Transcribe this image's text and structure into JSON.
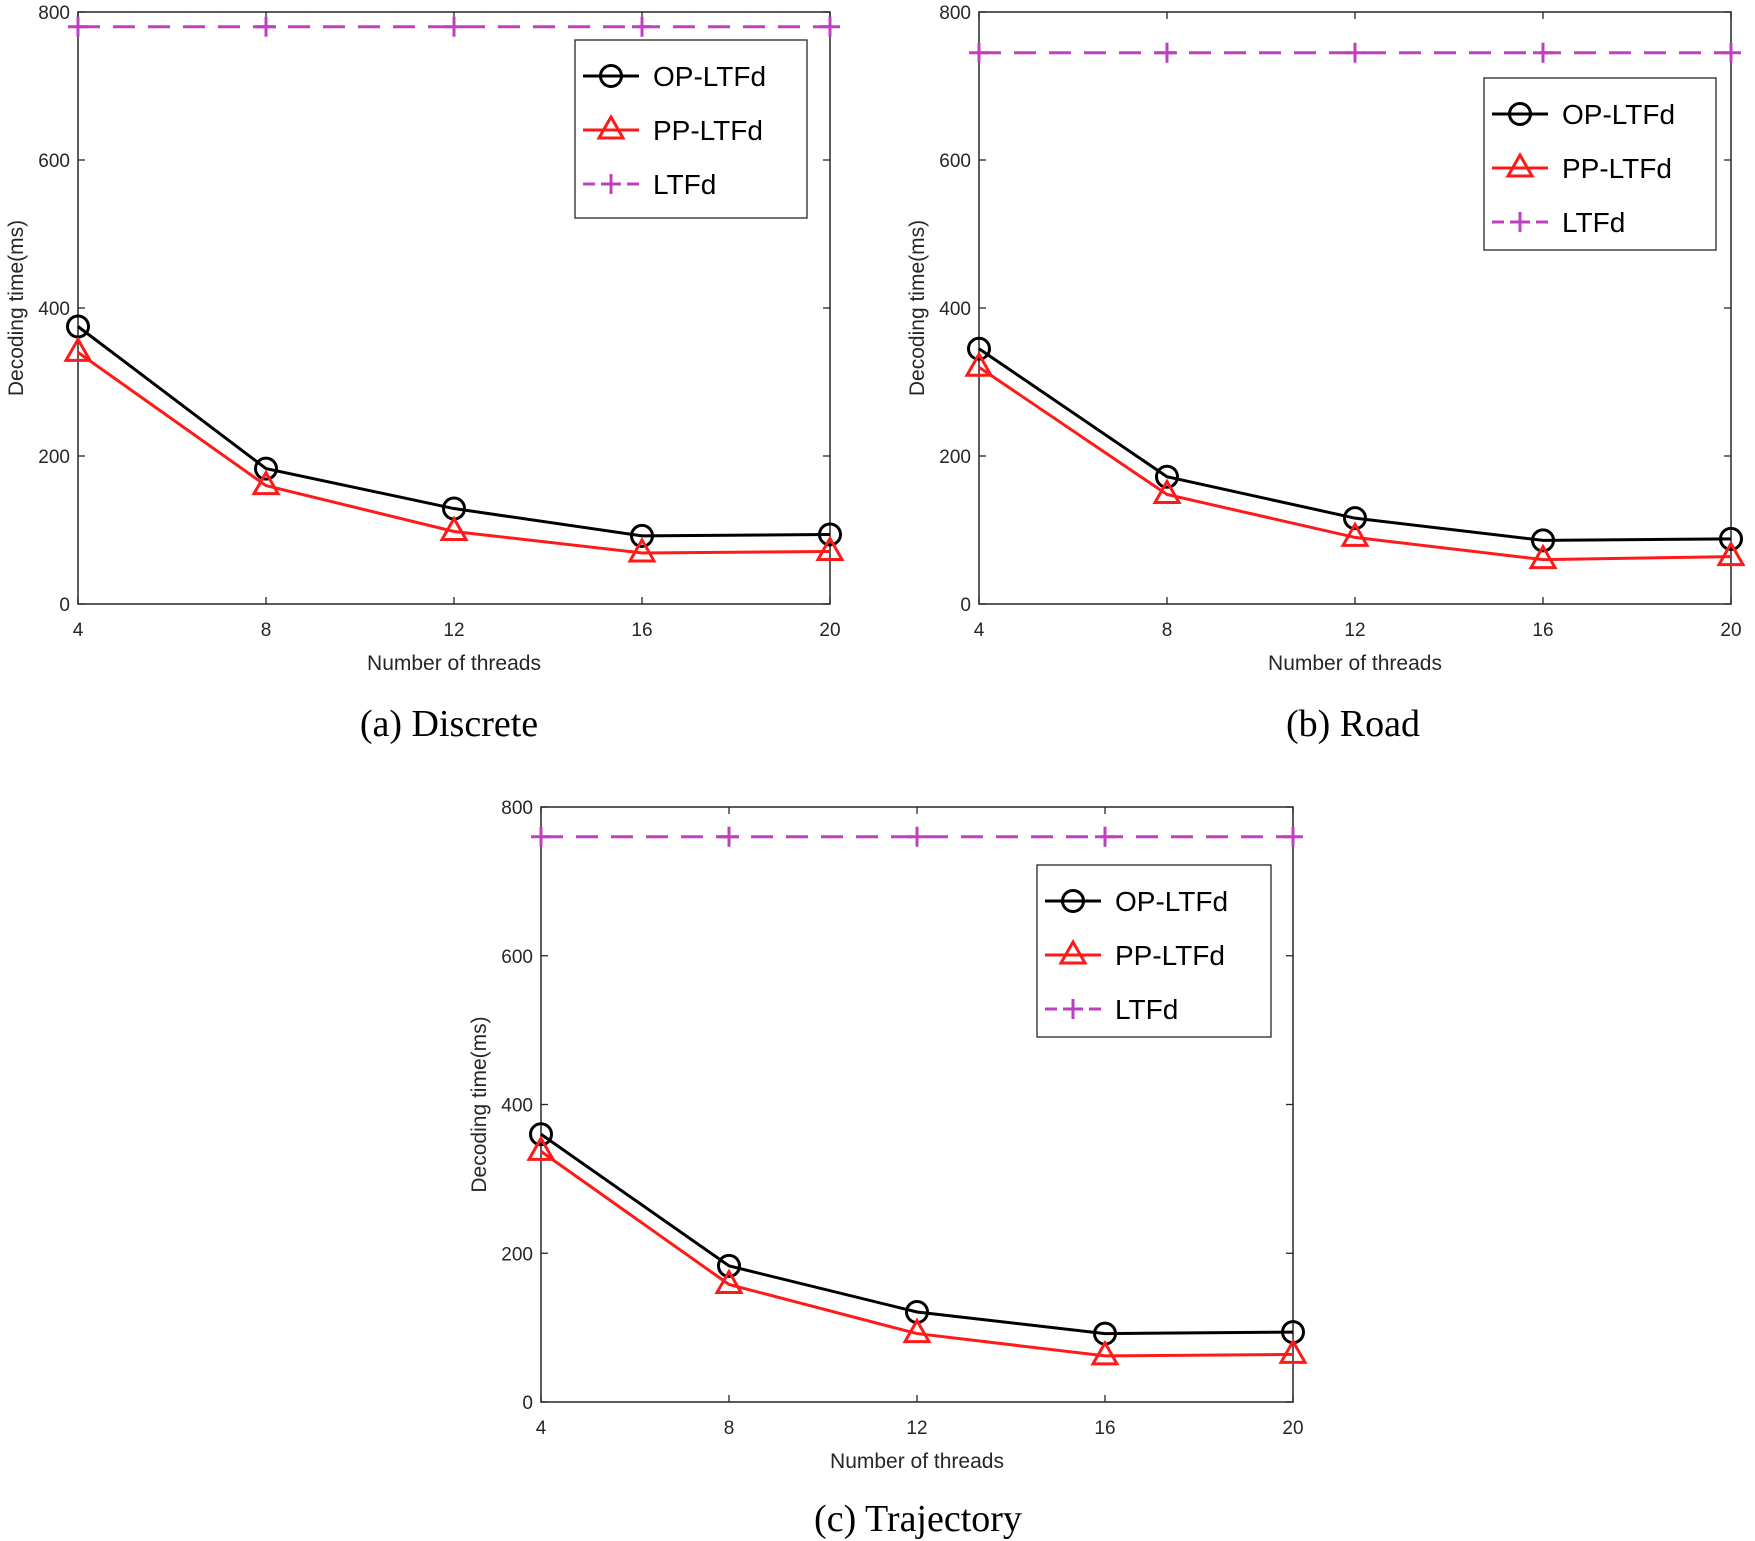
{
  "colors": {
    "OP-LTFd": "#000000",
    "PP-LTFd": "#ff1a1a",
    "LTFd": "#bf40bf"
  },
  "chart_data": [
    {
      "type": "line",
      "caption": "(a) Discrete",
      "xlabel": "Number of threads",
      "ylabel": "Decoding time(ms)",
      "x": [
        4,
        8,
        12,
        16,
        20
      ],
      "xlim": [
        4,
        20
      ],
      "ylim": [
        0,
        800
      ],
      "xticks": [
        "4",
        "8",
        "12",
        "16",
        "20"
      ],
      "yticks": [
        "0",
        "200",
        "400",
        "600",
        "800"
      ],
      "legend_position": "top-right",
      "series": [
        {
          "name": "OP-LTFd",
          "marker": "circle",
          "values": [
            375,
            183,
            129,
            92,
            94
          ]
        },
        {
          "name": "PP-LTFd",
          "marker": "triangle",
          "values": [
            340,
            160,
            98,
            69,
            71
          ]
        },
        {
          "name": "LTFd",
          "marker": "plus",
          "values": [
            780,
            780,
            780,
            780,
            780
          ]
        }
      ]
    },
    {
      "type": "line",
      "caption": "(b) Road",
      "xlabel": "Number of threads",
      "ylabel": "Decoding time(ms)",
      "x": [
        4,
        8,
        12,
        16,
        20
      ],
      "xlim": [
        4,
        20
      ],
      "ylim": [
        0,
        800
      ],
      "xticks": [
        "4",
        "8",
        "12",
        "16",
        "20"
      ],
      "yticks": [
        "0",
        "200",
        "400",
        "600",
        "800"
      ],
      "legend_position": "top-right",
      "series": [
        {
          "name": "OP-LTFd",
          "marker": "circle",
          "values": [
            345,
            172,
            116,
            86,
            88
          ]
        },
        {
          "name": "PP-LTFd",
          "marker": "triangle",
          "values": [
            320,
            148,
            90,
            60,
            64
          ]
        },
        {
          "name": "LTFd",
          "marker": "plus",
          "values": [
            745,
            745,
            745,
            745,
            745
          ]
        }
      ]
    },
    {
      "type": "line",
      "caption": "(c) Trajectory",
      "xlabel": "Number of threads",
      "ylabel": "Decoding time(ms)",
      "x": [
        4,
        8,
        12,
        16,
        20
      ],
      "xlim": [
        4,
        20
      ],
      "ylim": [
        0,
        800
      ],
      "xticks": [
        "4",
        "8",
        "12",
        "16",
        "20"
      ],
      "yticks": [
        "0",
        "200",
        "400",
        "600",
        "800"
      ],
      "legend_position": "top-right",
      "series": [
        {
          "name": "OP-LTFd",
          "marker": "circle",
          "values": [
            360,
            183,
            121,
            92,
            94
          ]
        },
        {
          "name": "PP-LTFd",
          "marker": "triangle",
          "values": [
            337,
            158,
            92,
            62,
            64
          ]
        },
        {
          "name": "LTFd",
          "marker": "plus",
          "values": [
            760,
            760,
            760,
            760,
            760
          ]
        }
      ]
    }
  ]
}
